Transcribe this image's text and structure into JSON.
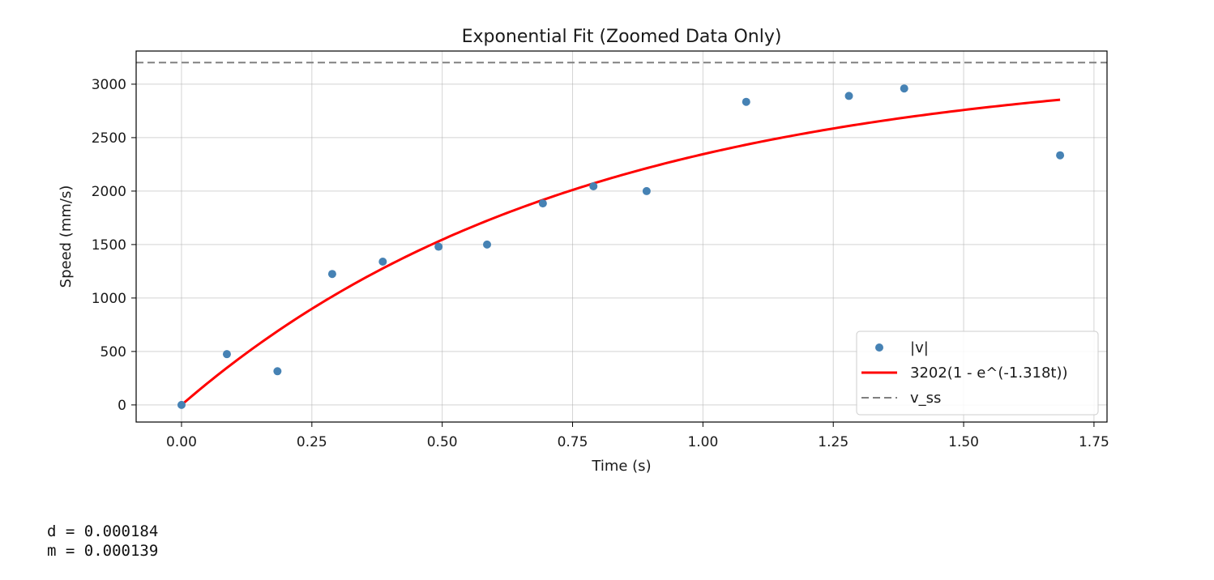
{
  "chart_data": {
    "type": "scatter",
    "title": "Exponential Fit (Zoomed Data Only)",
    "xlabel": "Time (s)",
    "ylabel": "Speed (mm/s)",
    "xlim": [
      -0.087,
      1.775
    ],
    "ylim": [
      -160,
      3310
    ],
    "xticks": [
      0.0,
      0.25,
      0.5,
      0.75,
      1.0,
      1.25,
      1.5,
      1.75
    ],
    "xtick_labels": [
      "0.00",
      "0.25",
      "0.50",
      "0.75",
      "1.00",
      "1.25",
      "1.50",
      "1.75"
    ],
    "yticks": [
      0,
      500,
      1000,
      1500,
      2000,
      2500,
      3000
    ],
    "ytick_labels": [
      "0",
      "500",
      "1000",
      "1500",
      "2000",
      "2500",
      "3000"
    ],
    "grid": true,
    "legend_position": "lower-right",
    "scatter": {
      "name": "|v|",
      "color": "#4682b4",
      "x": [
        0.0,
        0.087,
        0.184,
        0.289,
        0.386,
        0.493,
        0.586,
        0.693,
        0.79,
        0.892,
        1.083,
        1.28,
        1.386,
        1.685
      ],
      "y": [
        0,
        475,
        315,
        1225,
        1340,
        1480,
        1500,
        1885,
        2045,
        2000,
        2835,
        2890,
        2960,
        2335
      ]
    },
    "fit": {
      "name": "3202(1 - e^(-1.318t))",
      "color": "#ff0000",
      "amplitude": 3202,
      "rate": 1.318,
      "x_start": 0.0,
      "x_end": 1.685
    },
    "reference": {
      "name": "v_ss",
      "color": "#808080",
      "y": 3202
    }
  },
  "output_lines": {
    "line1": "d = 0.000184",
    "line2": "m = 0.000139"
  }
}
